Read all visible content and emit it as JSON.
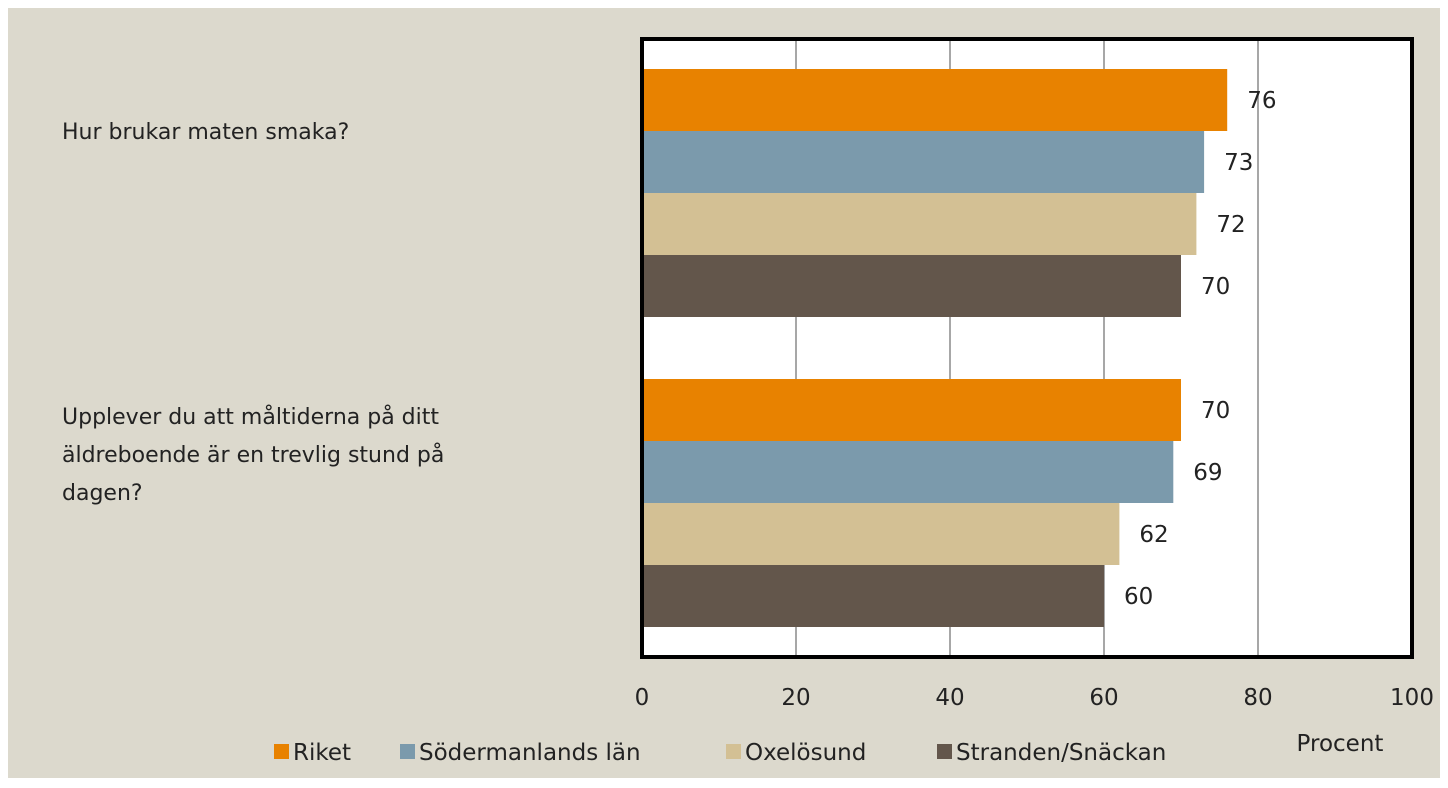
{
  "colors": {
    "background": "#dcd9cd",
    "plot_background": "#ffffff",
    "gridline": "#8a8a8a",
    "axis_frame": "#000000"
  },
  "chart_data": {
    "type": "bar",
    "orientation": "horizontal",
    "categories": [
      "Hur brukar maten smaka?",
      "Upplever du att måltiderna på ditt äldreboende är en trevlig stund på dagen?"
    ],
    "category_lines": [
      [
        "Hur brukar maten smaka?"
      ],
      [
        "Upplever du att måltiderna på ditt",
        "äldreboende är en trevlig stund på",
        "dagen?"
      ]
    ],
    "series": [
      {
        "name": "Riket",
        "color": "#e88200",
        "values": [
          76,
          70
        ]
      },
      {
        "name": "Södermanlands län",
        "color": "#7b9aac",
        "values": [
          73,
          69
        ]
      },
      {
        "name": "Oxelösund",
        "color": "#d3c094",
        "values": [
          72,
          62
        ]
      },
      {
        "name": "Stranden/Snäckan",
        "color": "#63564b",
        "values": [
          70,
          60
        ]
      }
    ],
    "xlabel": "Procent",
    "xlim": [
      0,
      100
    ],
    "xticks": [
      "0",
      "20",
      "40",
      "60",
      "80",
      "100"
    ],
    "grid": true,
    "legend_position": "bottom"
  }
}
